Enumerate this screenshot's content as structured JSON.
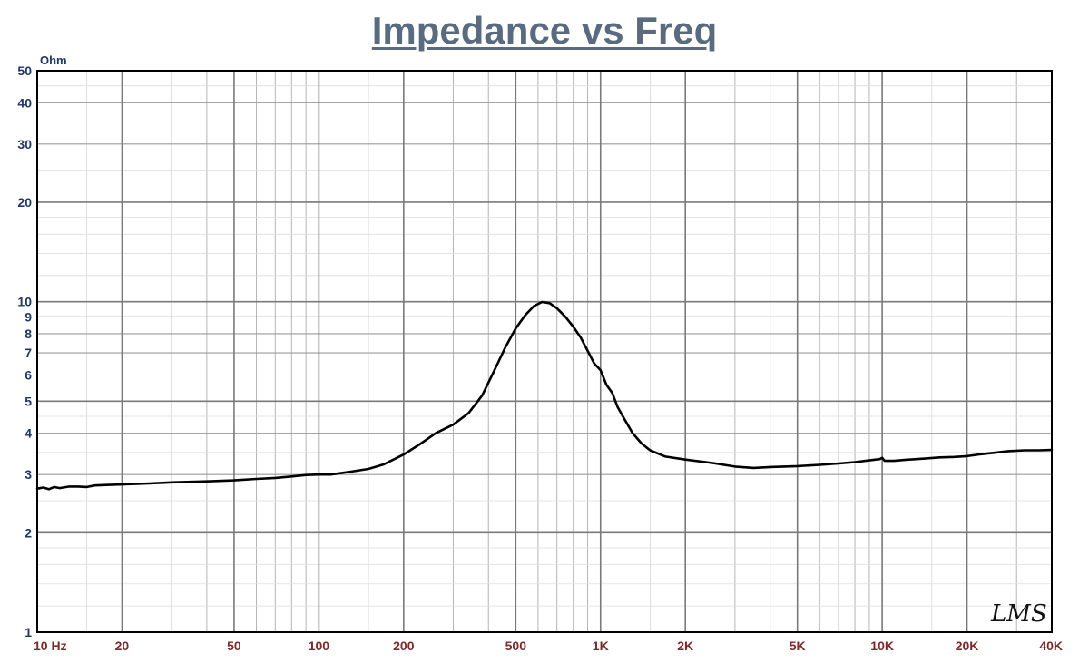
{
  "chart_data": {
    "type": "line",
    "title": "Impedance vs Freq",
    "ylabel": "Ohm",
    "xscale": "log",
    "yscale": "log",
    "xlim": [
      10,
      40000
    ],
    "ylim": [
      1,
      50
    ],
    "grid": true,
    "legend": "none",
    "x_ticks": [
      {
        "v": 10,
        "label": "10  Hz"
      },
      {
        "v": 20,
        "label": "20"
      },
      {
        "v": 50,
        "label": "50"
      },
      {
        "v": 100,
        "label": "100"
      },
      {
        "v": 200,
        "label": "200"
      },
      {
        "v": 500,
        "label": "500"
      },
      {
        "v": 1000,
        "label": "1K"
      },
      {
        "v": 2000,
        "label": "2K"
      },
      {
        "v": 5000,
        "label": "5K"
      },
      {
        "v": 10000,
        "label": "10K"
      },
      {
        "v": 20000,
        "label": "20K"
      },
      {
        "v": 40000,
        "label": "40K"
      }
    ],
    "y_ticks": [
      {
        "v": 1,
        "label": "1"
      },
      {
        "v": 2,
        "label": "2"
      },
      {
        "v": 3,
        "label": "3"
      },
      {
        "v": 4,
        "label": "4"
      },
      {
        "v": 5,
        "label": "5"
      },
      {
        "v": 6,
        "label": "6"
      },
      {
        "v": 7,
        "label": "7"
      },
      {
        "v": 8,
        "label": "8"
      },
      {
        "v": 9,
        "label": "9"
      },
      {
        "v": 10,
        "label": "10"
      },
      {
        "v": 20,
        "label": "20"
      },
      {
        "v": 30,
        "label": "30"
      },
      {
        "v": 40,
        "label": "40"
      },
      {
        "v": 50,
        "label": "50"
      }
    ],
    "series": [
      {
        "color": "#000000",
        "x": [
          10,
          10.5,
          11,
          11.5,
          12,
          13,
          14,
          15,
          16,
          18,
          20,
          25,
          30,
          40,
          50,
          60,
          70,
          80,
          90,
          100,
          110,
          120,
          130,
          150,
          170,
          200,
          230,
          260,
          300,
          340,
          380,
          420,
          460,
          500,
          540,
          580,
          620,
          660,
          700,
          750,
          800,
          850,
          900,
          950,
          1000,
          1050,
          1100,
          1150,
          1200,
          1300,
          1400,
          1500,
          1700,
          2000,
          2500,
          3000,
          3500,
          4000,
          5000,
          6000,
          7000,
          8000,
          9000,
          9800,
          10000,
          10200,
          11000,
          12000,
          14000,
          16000,
          18000,
          20000,
          22000,
          25000,
          28000,
          32000,
          36000,
          40000
        ],
        "y": [
          2.72,
          2.74,
          2.71,
          2.75,
          2.73,
          2.76,
          2.76,
          2.75,
          2.78,
          2.79,
          2.8,
          2.82,
          2.84,
          2.86,
          2.88,
          2.91,
          2.93,
          2.96,
          2.99,
          3.0,
          3.0,
          3.03,
          3.06,
          3.12,
          3.22,
          3.45,
          3.72,
          4.0,
          4.25,
          4.6,
          5.2,
          6.2,
          7.3,
          8.3,
          9.1,
          9.7,
          9.98,
          9.9,
          9.55,
          9.0,
          8.4,
          7.8,
          7.1,
          6.5,
          6.2,
          5.6,
          5.3,
          4.8,
          4.5,
          4.0,
          3.72,
          3.55,
          3.4,
          3.33,
          3.25,
          3.17,
          3.14,
          3.16,
          3.18,
          3.21,
          3.24,
          3.27,
          3.31,
          3.34,
          3.37,
          3.3,
          3.3,
          3.32,
          3.35,
          3.38,
          3.39,
          3.41,
          3.45,
          3.49,
          3.53,
          3.55,
          3.55,
          3.56
        ]
      }
    ]
  },
  "logo": {
    "text": "LMS"
  }
}
